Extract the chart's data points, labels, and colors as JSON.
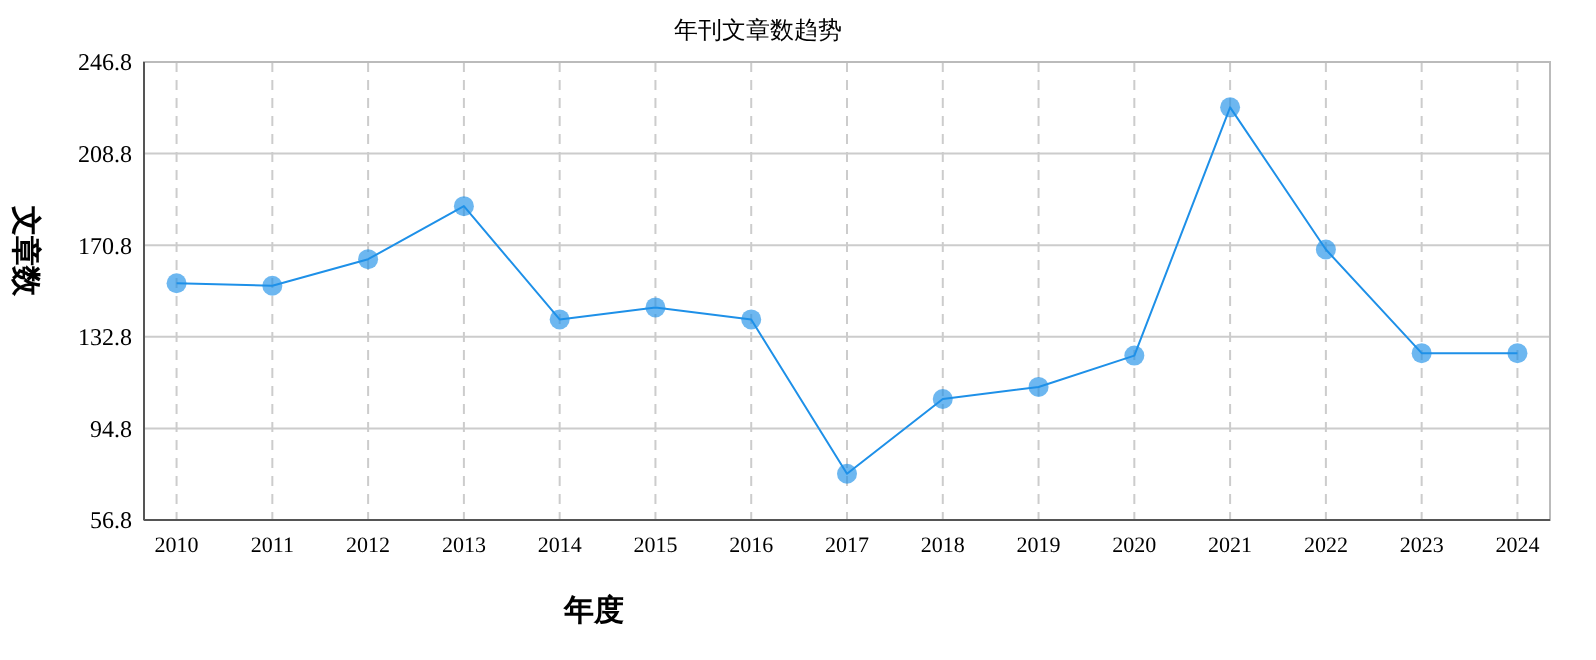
{
  "chart_data": {
    "type": "line",
    "title": "年刊文章数趋势",
    "xlabel": "年度",
    "ylabel": "文章数",
    "categories": [
      "2010",
      "2011",
      "2012",
      "2013",
      "2014",
      "2015",
      "2016",
      "2017",
      "2018",
      "2019",
      "2020",
      "2021",
      "2022",
      "2023",
      "2024"
    ],
    "series": [
      {
        "color": "#1e90e8",
        "values": [
          155,
          154,
          165,
          187,
          140,
          145,
          140,
          76,
          107,
          112,
          125,
          228,
          169,
          126,
          126
        ]
      }
    ],
    "ylim": [
      56.8,
      246.8
    ],
    "yticks": [
      56.8,
      94.8,
      132.8,
      170.8,
      208.8,
      246.8
    ],
    "grid": true,
    "marker": "circle",
    "line_style": "solid"
  }
}
